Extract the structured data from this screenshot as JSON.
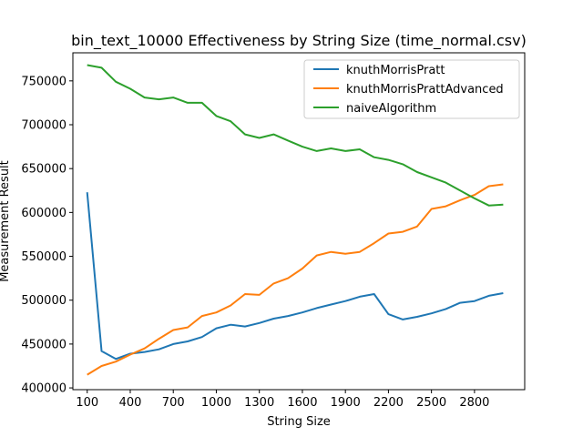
{
  "chart_data": {
    "type": "line",
    "title": "bin_text_10000 Effectiveness by String Size (time_normal.csv)",
    "xlabel": "String Size",
    "ylabel": "Measurement Result",
    "x": [
      100,
      200,
      300,
      400,
      500,
      600,
      700,
      800,
      900,
      1000,
      1100,
      1200,
      1300,
      1400,
      1500,
      1600,
      1700,
      1800,
      1900,
      2000,
      2100,
      2200,
      2300,
      2400,
      2500,
      2600,
      2700,
      2800,
      2900,
      3000
    ],
    "xlim": [
      0,
      3150
    ],
    "ylim": [
      398000,
      782000
    ],
    "xticks": [
      100,
      400,
      700,
      1000,
      1300,
      1600,
      1900,
      2200,
      2500,
      2800
    ],
    "xtick_labels": [
      "100",
      "400",
      "700",
      "1000",
      "1300",
      "1600",
      "1900",
      "2200",
      "2500",
      "2800"
    ],
    "yticks": [
      400000,
      450000,
      500000,
      550000,
      600000,
      650000,
      700000,
      750000
    ],
    "ytick_labels": [
      "400000",
      "450000",
      "500000",
      "550000",
      "600000",
      "650000",
      "700000",
      "750000"
    ],
    "legend_position": "top-right",
    "grid": false,
    "series": [
      {
        "name": "knuthMorrisPratt",
        "color": "#1f77b4",
        "values": [
          623000,
          442000,
          433000,
          439000,
          441000,
          444000,
          450000,
          453000,
          458000,
          468000,
          472000,
          470000,
          474000,
          479000,
          482000,
          486000,
          491000,
          495000,
          499000,
          504000,
          507000,
          484000,
          478000,
          481000,
          485000,
          490000,
          497000,
          499000,
          505000,
          508000
        ]
      },
      {
        "name": "knuthMorrisPrattAdvanced",
        "color": "#ff7f0e",
        "values": [
          415000,
          425000,
          430000,
          438000,
          445000,
          456000,
          466000,
          469000,
          482000,
          486000,
          494000,
          507000,
          506000,
          519000,
          525000,
          536000,
          551000,
          555000,
          553000,
          555000,
          565000,
          576000,
          578000,
          584000,
          604000,
          607000,
          614000,
          620000,
          630000,
          632000
        ]
      },
      {
        "name": "naiveAlgorithm",
        "color": "#2ca02c",
        "values": [
          768000,
          765000,
          749000,
          741000,
          731000,
          729000,
          731000,
          725000,
          725000,
          710000,
          704000,
          689000,
          685000,
          689000,
          682000,
          675000,
          670000,
          673000,
          670000,
          672000,
          663000,
          660000,
          655000,
          646000,
          640000,
          634000,
          625000,
          616000,
          608000,
          609000
        ]
      }
    ]
  }
}
